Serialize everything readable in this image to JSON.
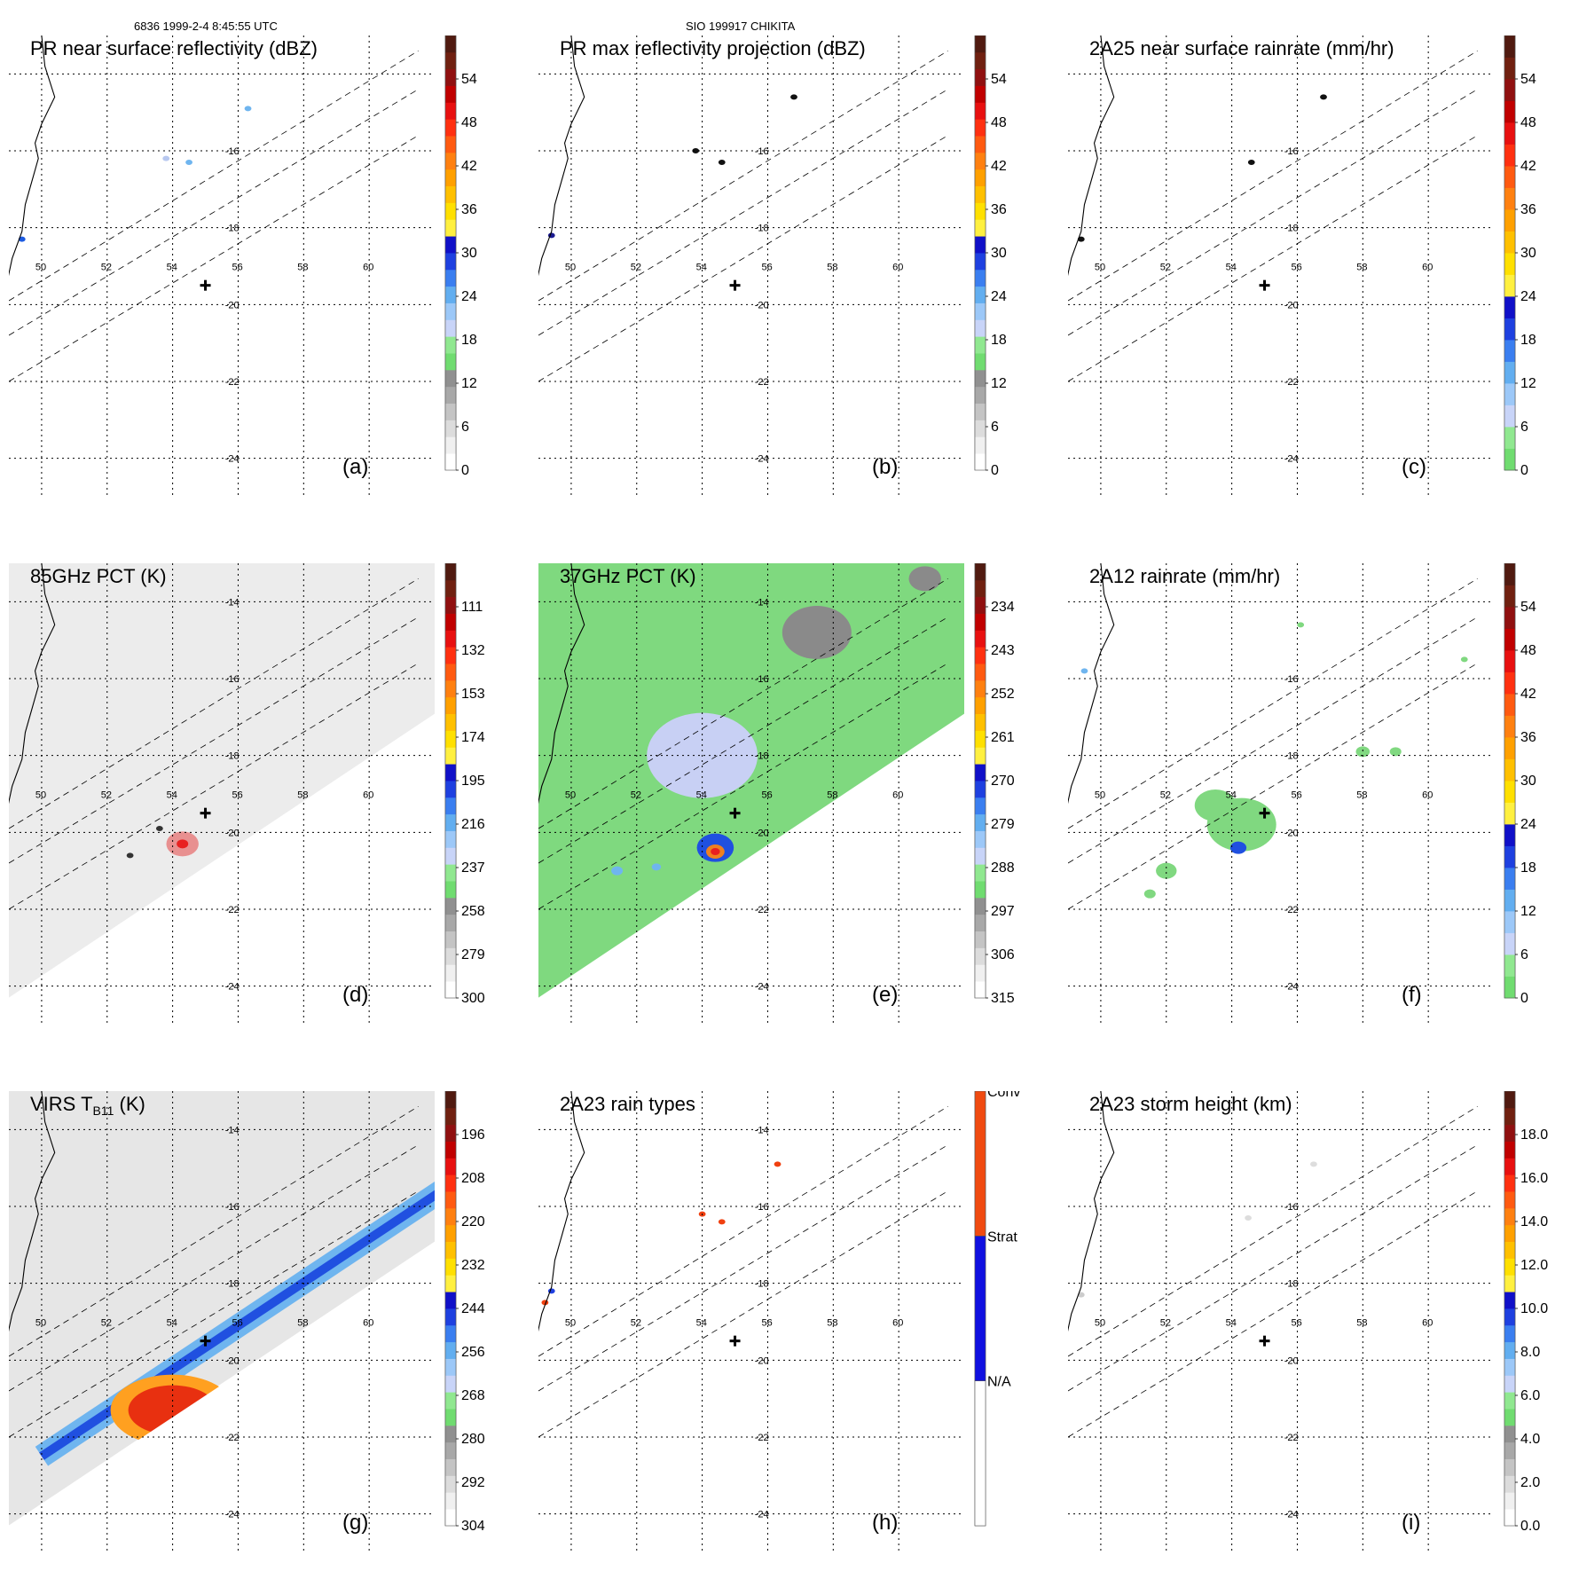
{
  "header": {
    "left": "6836 1999-2-4 8:45:55 UTC",
    "center": "SIO 199917 CHIKITA"
  },
  "chart_data": [
    {
      "type": "heatmap",
      "id": "a",
      "title": "PR near surface reflectivity (dBZ)",
      "panel_label": "(a)",
      "colorbar": {
        "ticks": [
          "0",
          "6",
          "12",
          "18",
          "24",
          "30",
          "36",
          "42",
          "48",
          "54"
        ],
        "segments": "dbz"
      },
      "swath": "pr",
      "lon_labels": [
        "50",
        "52",
        "54",
        "56",
        "58",
        "60"
      ],
      "lat_labels": [
        "-16",
        "-18",
        "-20",
        "-22",
        "-24"
      ],
      "lon_range": [
        49,
        62
      ],
      "lat_range": [
        -25,
        -13
      ],
      "center_mark": {
        "lon": 55,
        "lat": -19.5
      },
      "features": [
        {
          "lon": 56.3,
          "lat": -14.9,
          "color": "#6fb5ef"
        },
        {
          "lon": 53.8,
          "lat": -16.2,
          "color": "#b8c8f0"
        },
        {
          "lon": 54.5,
          "lat": -16.3,
          "color": "#6fb5ef"
        },
        {
          "lon": 49.4,
          "lat": -18.3,
          "color": "#1d5be0"
        }
      ]
    },
    {
      "type": "heatmap",
      "id": "b",
      "title": "PR max reflectivity projection (dBZ)",
      "panel_label": "(b)",
      "colorbar": {
        "ticks": [
          "0",
          "6",
          "12",
          "18",
          "24",
          "30",
          "36",
          "42",
          "48",
          "54"
        ],
        "segments": "dbz"
      },
      "swath": "pr",
      "lon_labels": [
        "50",
        "52",
        "54",
        "56",
        "58",
        "60"
      ],
      "lat_labels": [
        "-16",
        "-18",
        "-20",
        "-22",
        "-24"
      ],
      "lon_range": [
        49,
        62
      ],
      "lat_range": [
        -25,
        -13
      ],
      "center_mark": {
        "lon": 55,
        "lat": -19.5
      },
      "features": [
        {
          "lon": 56.8,
          "lat": -14.6,
          "color": "#111111"
        },
        {
          "lon": 53.8,
          "lat": -16.0,
          "color": "#111111"
        },
        {
          "lon": 54.6,
          "lat": -16.3,
          "color": "#111111"
        },
        {
          "lon": 49.4,
          "lat": -18.2,
          "color": "#1a1a90"
        }
      ]
    },
    {
      "type": "heatmap",
      "id": "c",
      "title": "2A25 near surface rainrate (mm/hr)",
      "panel_label": "(c)",
      "colorbar": {
        "ticks": [
          "0",
          "6",
          "12",
          "18",
          "24",
          "30",
          "36",
          "42",
          "48",
          "54"
        ],
        "segments": "rain"
      },
      "swath": "pr",
      "lon_labels": [
        "50",
        "52",
        "54",
        "56",
        "58",
        "60"
      ],
      "lat_labels": [
        "-16",
        "-18",
        "-20",
        "-22",
        "-24"
      ],
      "lon_range": [
        49,
        62
      ],
      "lat_range": [
        -25,
        -13
      ],
      "center_mark": {
        "lon": 55,
        "lat": -19.5
      },
      "features": [
        {
          "lon": 56.8,
          "lat": -14.6,
          "color": "#111111"
        },
        {
          "lon": 54.6,
          "lat": -16.3,
          "color": "#111111"
        },
        {
          "lon": 49.4,
          "lat": -18.3,
          "color": "#111111"
        }
      ]
    },
    {
      "type": "heatmap",
      "id": "d",
      "title": "85GHz PCT (K)",
      "panel_label": "(d)",
      "colorbar": {
        "ticks": [
          "300",
          "279",
          "258",
          "237",
          "216",
          "195",
          "174",
          "153",
          "132",
          "111"
        ],
        "segments": "pct"
      },
      "swath": "tmi_grey",
      "lon_labels": [
        "50",
        "52",
        "54",
        "56",
        "58",
        "60"
      ],
      "lat_labels": [
        "-14",
        "-16",
        "-18",
        "-20",
        "-22",
        "-24"
      ],
      "lon_range": [
        49,
        62
      ],
      "lat_range": [
        -25,
        -13
      ],
      "center_mark": {
        "lon": 55,
        "lat": -19.5
      },
      "features": [
        {
          "lon": 54.3,
          "lat": -20.3,
          "color": "#e89090",
          "r": 14
        },
        {
          "lon": 54.3,
          "lat": -20.3,
          "color": "#e82020",
          "r": 5
        },
        {
          "lon": 53.6,
          "lat": -19.9,
          "color": "#333333",
          "r": 3
        },
        {
          "lon": 52.7,
          "lat": -20.6,
          "color": "#333333",
          "r": 3
        }
      ]
    },
    {
      "type": "heatmap",
      "id": "e",
      "title": "37GHz PCT (K)",
      "panel_label": "(e)",
      "colorbar": {
        "ticks": [
          "315",
          "306",
          "297",
          "288",
          "279",
          "270",
          "261",
          "252",
          "243",
          "234"
        ],
        "segments": "pct"
      },
      "swath": "tmi_green",
      "lon_labels": [
        "50",
        "52",
        "54",
        "56",
        "58",
        "60"
      ],
      "lat_labels": [
        "-14",
        "-16",
        "-18",
        "-20",
        "-22",
        "-24"
      ],
      "lon_range": [
        49,
        62
      ],
      "lat_range": [
        -25,
        -13
      ],
      "center_mark": {
        "lon": 55,
        "lat": -19.5
      },
      "features": [
        {
          "lon": 57.5,
          "lat": -14.8,
          "color": "#8a8a8a",
          "r": 30
        },
        {
          "lon": 60.8,
          "lat": -13.4,
          "color": "#8a8a8a",
          "r": 14
        },
        {
          "lon": 54.0,
          "lat": -18.0,
          "color": "#c8d0f4",
          "r": 48
        },
        {
          "lon": 54.4,
          "lat": -20.4,
          "color": "#2050e0",
          "r": 16
        },
        {
          "lon": 54.4,
          "lat": -20.5,
          "color": "#f08020",
          "r": 8
        },
        {
          "lon": 54.4,
          "lat": -20.5,
          "color": "#e82020",
          "r": 4
        },
        {
          "lon": 51.4,
          "lat": -21.0,
          "color": "#6fb5ef",
          "r": 5
        },
        {
          "lon": 52.6,
          "lat": -20.9,
          "color": "#6fb5ef",
          "r": 4
        }
      ]
    },
    {
      "type": "heatmap",
      "id": "f",
      "title": "2A12 rainrate (mm/hr)",
      "panel_label": "(f)",
      "colorbar": {
        "ticks": [
          "0",
          "6",
          "12",
          "18",
          "24",
          "30",
          "36",
          "42",
          "48",
          "54"
        ],
        "segments": "rain"
      },
      "swath": "none",
      "lon_labels": [
        "50",
        "52",
        "54",
        "56",
        "58",
        "60"
      ],
      "lat_labels": [
        "-16",
        "-18",
        "-20",
        "-22",
        "-24"
      ],
      "lon_range": [
        49,
        62
      ],
      "lat_range": [
        -25,
        -13
      ],
      "center_mark": {
        "lon": 55,
        "lat": -19.5
      },
      "features": [
        {
          "lon": 54.3,
          "lat": -19.8,
          "color": "#80d880",
          "r": 30
        },
        {
          "lon": 53.5,
          "lat": -19.3,
          "color": "#80d880",
          "r": 18
        },
        {
          "lon": 54.2,
          "lat": -20.4,
          "color": "#2050e0",
          "r": 7
        },
        {
          "lon": 52.0,
          "lat": -21.0,
          "color": "#80d880",
          "r": 9
        },
        {
          "lon": 51.5,
          "lat": -21.6,
          "color": "#80d880",
          "r": 5
        },
        {
          "lon": 58.0,
          "lat": -17.9,
          "color": "#80d880",
          "r": 6
        },
        {
          "lon": 59.0,
          "lat": -17.9,
          "color": "#80d880",
          "r": 5
        },
        {
          "lon": 56.1,
          "lat": -14.6,
          "color": "#80d880",
          "r": 3
        },
        {
          "lon": 61.1,
          "lat": -15.5,
          "color": "#80d880",
          "r": 3
        },
        {
          "lon": 49.5,
          "lat": -15.8,
          "color": "#6fb5ef",
          "r": 3
        }
      ]
    },
    {
      "type": "heatmap",
      "id": "g",
      "title": "VIRS T",
      "title_sub": "B11",
      "title_tail": " (K)",
      "panel_label": "(g)",
      "colorbar": {
        "ticks": [
          "304",
          "292",
          "280",
          "268",
          "256",
          "244",
          "232",
          "220",
          "208",
          "196"
        ],
        "segments": "virs"
      },
      "swath": "virs",
      "lon_labels": [
        "50",
        "52",
        "54",
        "56",
        "58",
        "60"
      ],
      "lat_labels": [
        "-14",
        "-16",
        "-18",
        "-20",
        "-22",
        "-24"
      ],
      "lon_range": [
        49,
        62
      ],
      "lat_range": [
        -25,
        -13
      ],
      "center_mark": {
        "lon": 55,
        "lat": -19.5
      },
      "features": []
    },
    {
      "type": "heatmap",
      "id": "h",
      "title": "2A23 rain types",
      "panel_label": "(h)",
      "colorbar": {
        "categories": [
          "N/A",
          "Strat",
          "Conv"
        ],
        "segments": "types"
      },
      "swath": "pr",
      "lon_labels": [
        "50",
        "52",
        "54",
        "56",
        "58",
        "60"
      ],
      "lat_labels": [
        "-14",
        "-16",
        "-18",
        "-20",
        "-22",
        "-24"
      ],
      "lon_range": [
        49,
        62
      ],
      "lat_range": [
        -25,
        -13
      ],
      "center_mark": {
        "lon": 55,
        "lat": -19.5
      },
      "features": [
        {
          "lon": 56.3,
          "lat": -14.9,
          "color": "#f04010"
        },
        {
          "lon": 54.0,
          "lat": -16.2,
          "color": "#f04010"
        },
        {
          "lon": 54.6,
          "lat": -16.4,
          "color": "#f04010"
        },
        {
          "lon": 49.4,
          "lat": -18.2,
          "color": "#2040e0"
        },
        {
          "lon": 49.2,
          "lat": -18.5,
          "color": "#f04010"
        }
      ]
    },
    {
      "type": "heatmap",
      "id": "i",
      "title": "2A23 storm height (km)",
      "panel_label": "(i)",
      "colorbar": {
        "ticks": [
          "0.0",
          "2.0",
          "4.0",
          "6.0",
          "8.0",
          "10.0",
          "12.0",
          "14.0",
          "16.0",
          "18.0"
        ],
        "segments": "height"
      },
      "swath": "pr",
      "lon_labels": [
        "50",
        "52",
        "54",
        "56",
        "58",
        "60"
      ],
      "lat_labels": [
        "-16",
        "-18",
        "-20",
        "-22",
        "-24"
      ],
      "lon_range": [
        49,
        62
      ],
      "lat_range": [
        -25,
        -13
      ],
      "center_mark": {
        "lon": 55,
        "lat": -19.5
      },
      "features": [
        {
          "lon": 56.5,
          "lat": -14.9,
          "color": "#dddddd"
        },
        {
          "lon": 54.5,
          "lat": -16.3,
          "color": "#dddddd"
        },
        {
          "lon": 49.4,
          "lat": -18.3,
          "color": "#cccccc"
        }
      ]
    }
  ]
}
